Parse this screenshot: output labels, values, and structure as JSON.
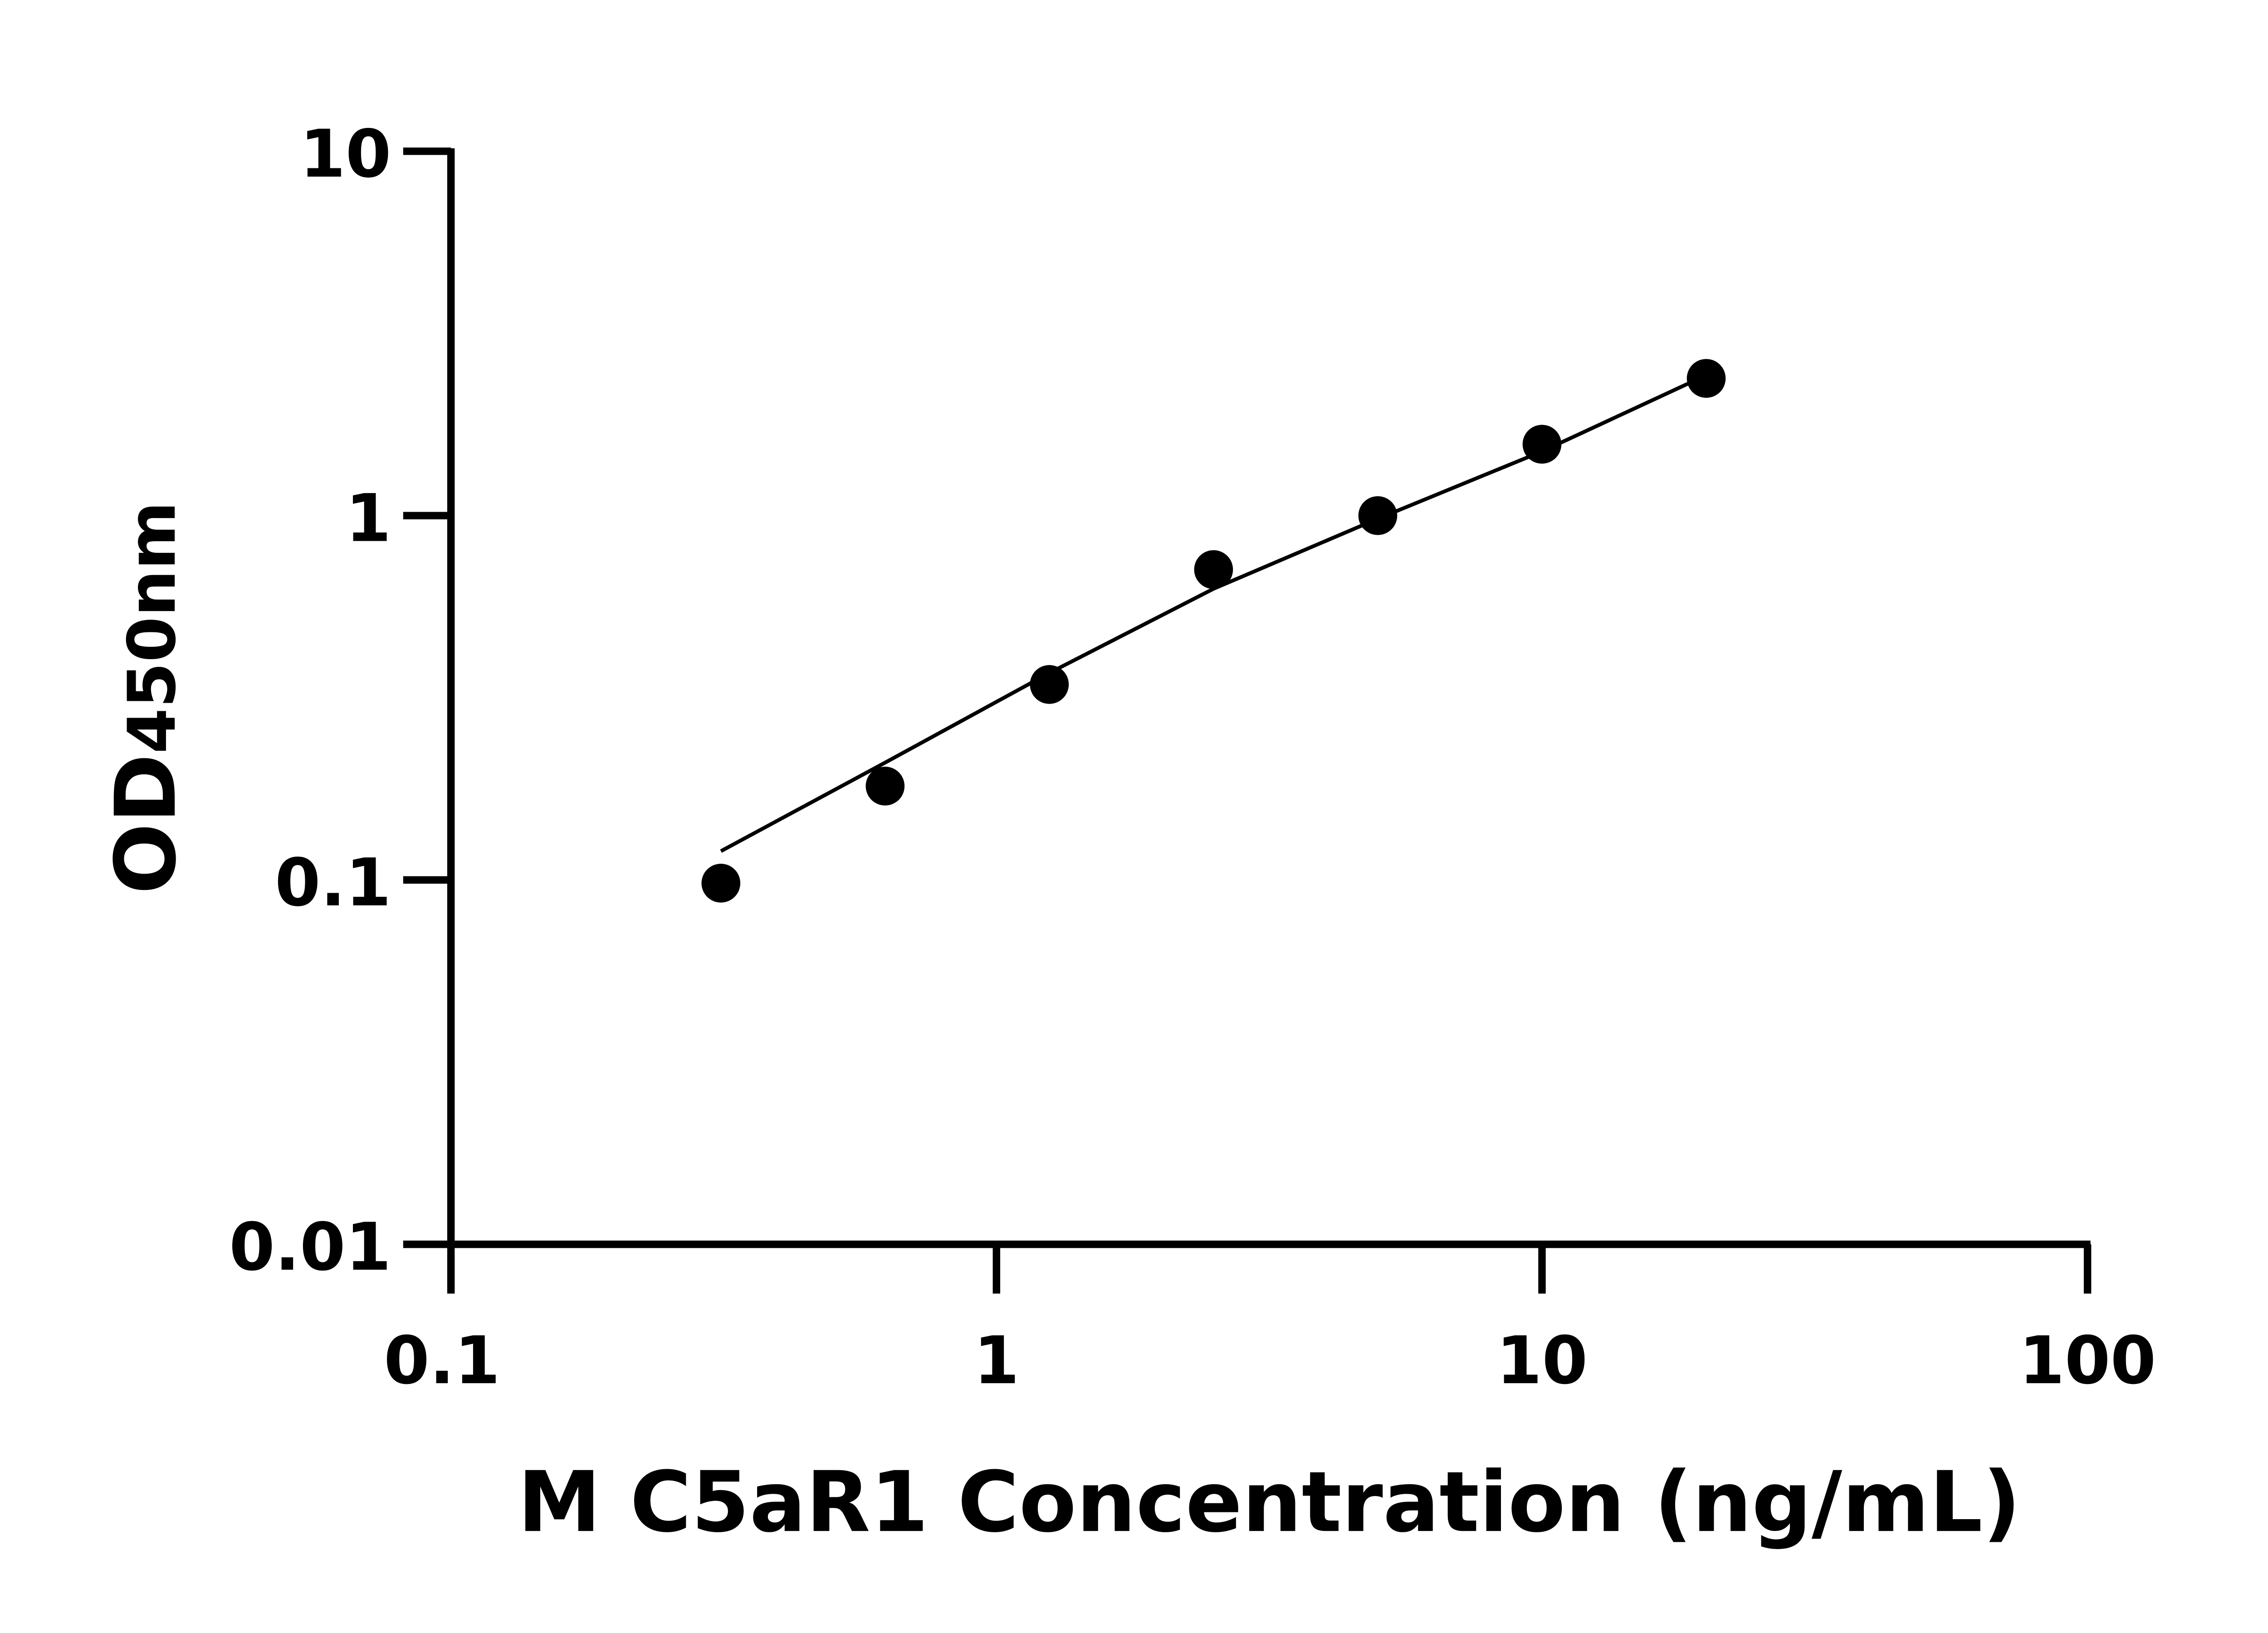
{
  "chart_data": {
    "type": "scatter",
    "title": "",
    "xlabel": "M C5aR1 Concentration (ng/mL)",
    "ylabel": {
      "main": "OD",
      "sub": "450nm"
    },
    "x_scale": "log",
    "y_scale": "log",
    "xlim": [
      0.1,
      100
    ],
    "ylim": [
      0.01,
      10
    ],
    "x_ticks": [
      "0.1",
      "1",
      "10",
      "100"
    ],
    "y_ticks": [
      "0.01",
      "0.1",
      "1",
      "10"
    ],
    "grid": false,
    "legend": "none",
    "color": "#000000",
    "points": {
      "x": [
        0.3125,
        0.625,
        1.25,
        2.5,
        5,
        10,
        20
      ],
      "y": [
        0.098,
        0.181,
        0.344,
        0.711,
        1.0,
        1.57,
        2.38
      ]
    },
    "fit_curve": {
      "x": [
        0.3125,
        0.625,
        1.25,
        2.5,
        5,
        10,
        18.5
      ],
      "y": [
        0.12,
        0.21,
        0.37,
        0.63,
        0.98,
        1.5,
        2.3
      ]
    }
  }
}
